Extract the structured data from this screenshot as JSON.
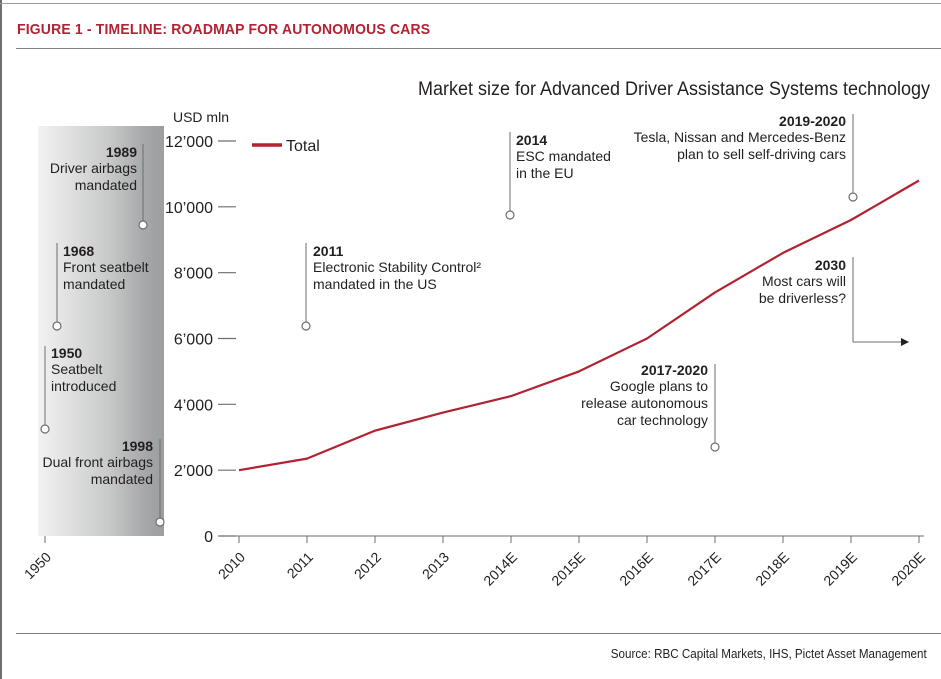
{
  "figure_title": "FIGURE 1 - TIMELINE: ROADMAP FOR AUTONOMOUS CARS",
  "source": "Source: RBC Capital Markets, IHS, Pictet Asset Management",
  "colors": {
    "series": "#b22232",
    "title": "#b22232",
    "text": "#231f20",
    "axis": "#6d6e70"
  },
  "chart_data": {
    "type": "line",
    "title": "Market size for Advanced Driver Assistance Systems technology",
    "ylabel": "USD mln",
    "ylim": [
      0,
      12000
    ],
    "yticks": [
      0,
      2000,
      4000,
      6000,
      8000,
      10000,
      12000
    ],
    "ytick_labels": [
      "0",
      "2’000",
      "4’000",
      "6’000",
      "8’000",
      "10’000",
      "12’000"
    ],
    "categories": [
      "2010",
      "2011",
      "2012",
      "2013",
      "2014E",
      "2015E",
      "2016E",
      "2017E",
      "2018E",
      "2019E",
      "2020E"
    ],
    "timeline_start_label": "1950",
    "legend": "top-left",
    "series": [
      {
        "name": "Total",
        "values": [
          2000,
          2350,
          3200,
          3750,
          4250,
          5000,
          6000,
          7400,
          8600,
          9600,
          10800
        ]
      }
    ],
    "annotations": [
      {
        "id": "1989",
        "title": "1989",
        "lines": [
          "Driver airbags",
          "mandated"
        ],
        "align": "right"
      },
      {
        "id": "1968",
        "title": "1968",
        "lines": [
          "Front seatbelt",
          "mandated"
        ],
        "align": "left"
      },
      {
        "id": "1950",
        "title": "1950",
        "lines": [
          "Seatbelt",
          "introduced"
        ],
        "align": "left"
      },
      {
        "id": "1998",
        "title": "1998",
        "lines": [
          "Dual front airbags",
          "mandated"
        ],
        "align": "right"
      },
      {
        "id": "2011",
        "title": "2011",
        "lines": [
          "Electronic Stability Control²",
          "mandated in the US"
        ],
        "align": "left"
      },
      {
        "id": "2014",
        "title": "2014",
        "lines": [
          "ESC mandated",
          "in the EU"
        ],
        "align": "left"
      },
      {
        "id": "2019-2020",
        "title": "2019-2020",
        "lines": [
          "Tesla, Nissan and Mercedes-Benz",
          "plan to sell self-driving cars"
        ],
        "align": "right"
      },
      {
        "id": "2030",
        "title": "2030",
        "lines": [
          "Most cars will",
          "be driverless?"
        ],
        "align": "right"
      },
      {
        "id": "2017-2020",
        "title": "2017-2020",
        "lines": [
          "Google plans to",
          "release autonomous",
          "car technology"
        ],
        "align": "right"
      }
    ]
  }
}
